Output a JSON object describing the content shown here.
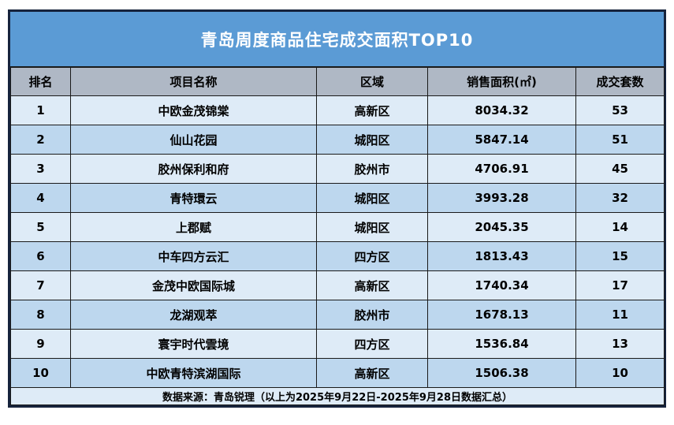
{
  "title": "青岛周度商品住宅成交面积TOP10",
  "columns": [
    "排名",
    "项目名称",
    "区域",
    "销售面积(㎡)",
    "成交套数"
  ],
  "rows": [
    {
      "rank": "1",
      "project": "中欧金茂锦棠",
      "district": "高新区",
      "area": "8034.32",
      "units": "53"
    },
    {
      "rank": "2",
      "project": "仙山花园",
      "district": "城阳区",
      "area": "5847.14",
      "units": "51"
    },
    {
      "rank": "3",
      "project": "胶州保利和府",
      "district": "胶州市",
      "area": "4706.91",
      "units": "45"
    },
    {
      "rank": "4",
      "project": "青特環云",
      "district": "城阳区",
      "area": "3993.28",
      "units": "32"
    },
    {
      "rank": "5",
      "project": "上郡赋",
      "district": "城阳区",
      "area": "2045.35",
      "units": "14"
    },
    {
      "rank": "6",
      "project": "中车四方云汇",
      "district": "四方区",
      "area": "1813.43",
      "units": "15"
    },
    {
      "rank": "7",
      "project": "金茂中欧国际城",
      "district": "高新区",
      "area": "1740.34",
      "units": "17"
    },
    {
      "rank": "8",
      "project": "龙湖观萃",
      "district": "胶州市",
      "area": "1678.13",
      "units": "11"
    },
    {
      "rank": "9",
      "project": "寰宇时代雲境",
      "district": "四方区",
      "area": "1536.84",
      "units": "13"
    },
    {
      "rank": "10",
      "project": "中欧青特滨湖国际",
      "district": "高新区",
      "area": "1506.38",
      "units": "10"
    }
  ],
  "footer": "数据来源：青岛锐理（以上为2025年9月22日-2025年9月28日数据汇总）",
  "colors": {
    "title_bar": "#5b9bd5",
    "header_row": "#afb8c5",
    "row_light": "#deebf7",
    "row_dark": "#bdd7ee",
    "grid_line": "#1a1a1a",
    "outer_border": "#16233c",
    "title_text": "#ffffff",
    "cell_text": "#000000"
  },
  "chart_data": {
    "type": "table",
    "title": "青岛周度商品住宅成交面积TOP10",
    "columns": [
      "排名",
      "项目名称",
      "区域",
      "销售面积(㎡)",
      "成交套数"
    ],
    "rows": [
      [
        1,
        "中欧金茂锦棠",
        "高新区",
        8034.32,
        53
      ],
      [
        2,
        "仙山花园",
        "城阳区",
        5847.14,
        51
      ],
      [
        3,
        "胶州保利和府",
        "胶州市",
        4706.91,
        45
      ],
      [
        4,
        "青特環云",
        "城阳区",
        3993.28,
        32
      ],
      [
        5,
        "上郡赋",
        "城阳区",
        2045.35,
        14
      ],
      [
        6,
        "中车四方云汇",
        "四方区",
        1813.43,
        15
      ],
      [
        7,
        "金茂中欧国际城",
        "高新区",
        1740.34,
        17
      ],
      [
        8,
        "龙湖观萃",
        "胶州市",
        1678.13,
        11
      ],
      [
        9,
        "寰宇时代雲境",
        "四方区",
        1536.84,
        13
      ],
      [
        10,
        "中欧青特滨湖国际",
        "高新区",
        1506.38,
        10
      ]
    ],
    "source_note": "数据来源：青岛锐理（以上为2025年9月22日-2025年9月28日数据汇总）"
  }
}
